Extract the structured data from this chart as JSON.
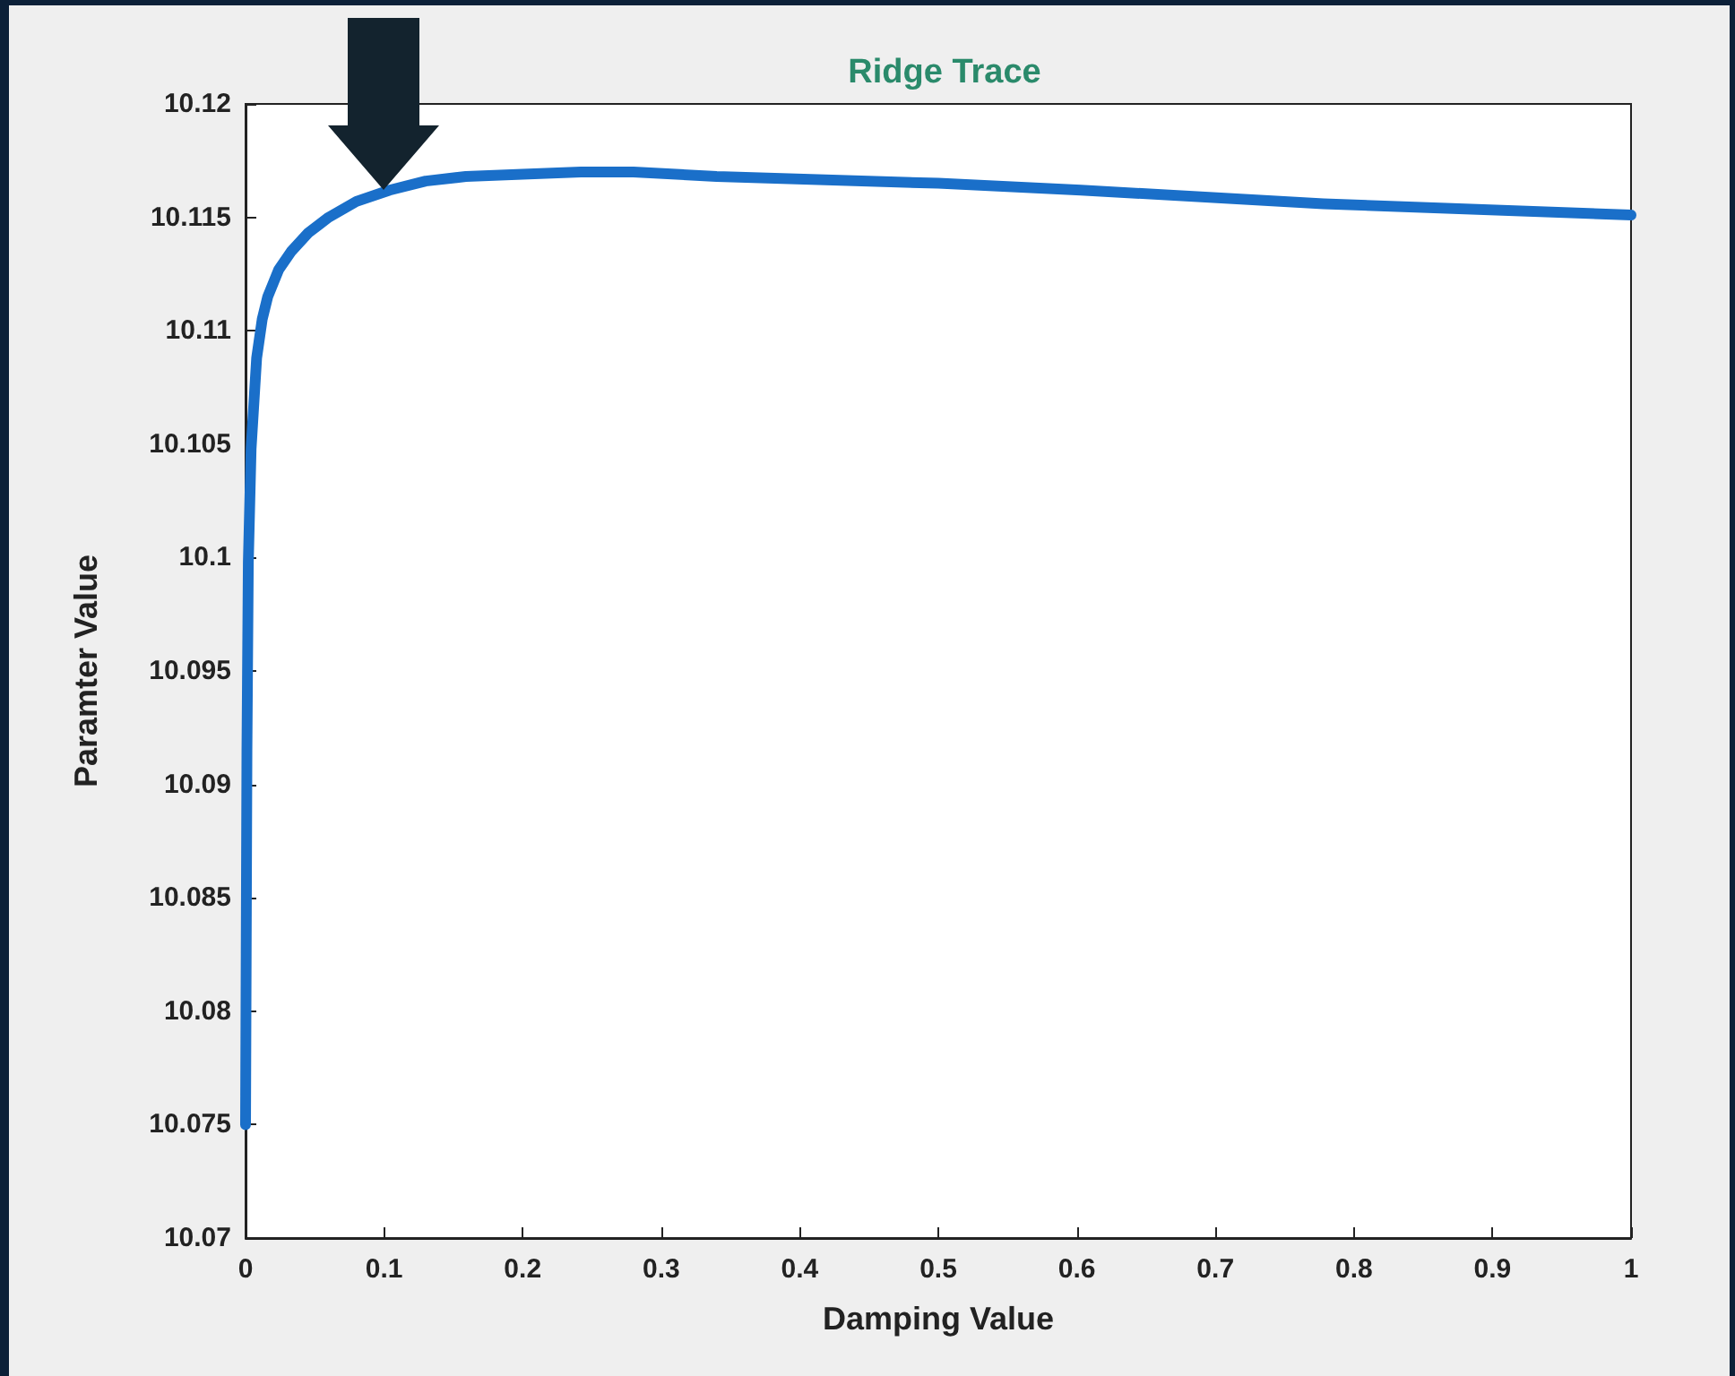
{
  "chart_data": {
    "type": "line",
    "title": "Ridge Trace",
    "xlabel": "Damping Value",
    "ylabel": "Paramter Value",
    "xlim": [
      0,
      1
    ],
    "xticks": [
      0,
      0.1,
      0.2,
      0.3,
      0.4,
      0.5,
      0.6,
      0.7,
      0.8,
      0.9,
      1
    ],
    "ylim": [
      10.07,
      10.12
    ],
    "yticks": [
      10.07,
      10.075,
      10.08,
      10.085,
      10.09,
      10.095,
      10.1,
      10.105,
      10.11,
      10.115,
      10.12
    ],
    "grid": false,
    "marker": "none",
    "line_style": "solid",
    "series": [
      {
        "color": "#1a6fc9",
        "x": [
          0,
          0.001,
          0.002,
          0.004,
          0.008,
          0.012,
          0.016,
          0.024,
          0.033,
          0.045,
          0.06,
          0.08,
          0.104,
          0.13,
          0.159,
          0.2,
          0.242,
          0.28,
          0.34,
          0.5,
          0.603,
          0.778,
          1
        ],
        "values": [
          10.075,
          10.0915,
          10.0998,
          10.1048,
          10.1088,
          10.1105,
          10.1115,
          10.1127,
          10.1135,
          10.1143,
          10.115,
          10.1157,
          10.1162,
          10.1166,
          10.1168,
          10.1169,
          10.117,
          10.117,
          10.1168,
          10.1165,
          10.1162,
          10.1156,
          10.1151
        ]
      }
    ]
  }
}
